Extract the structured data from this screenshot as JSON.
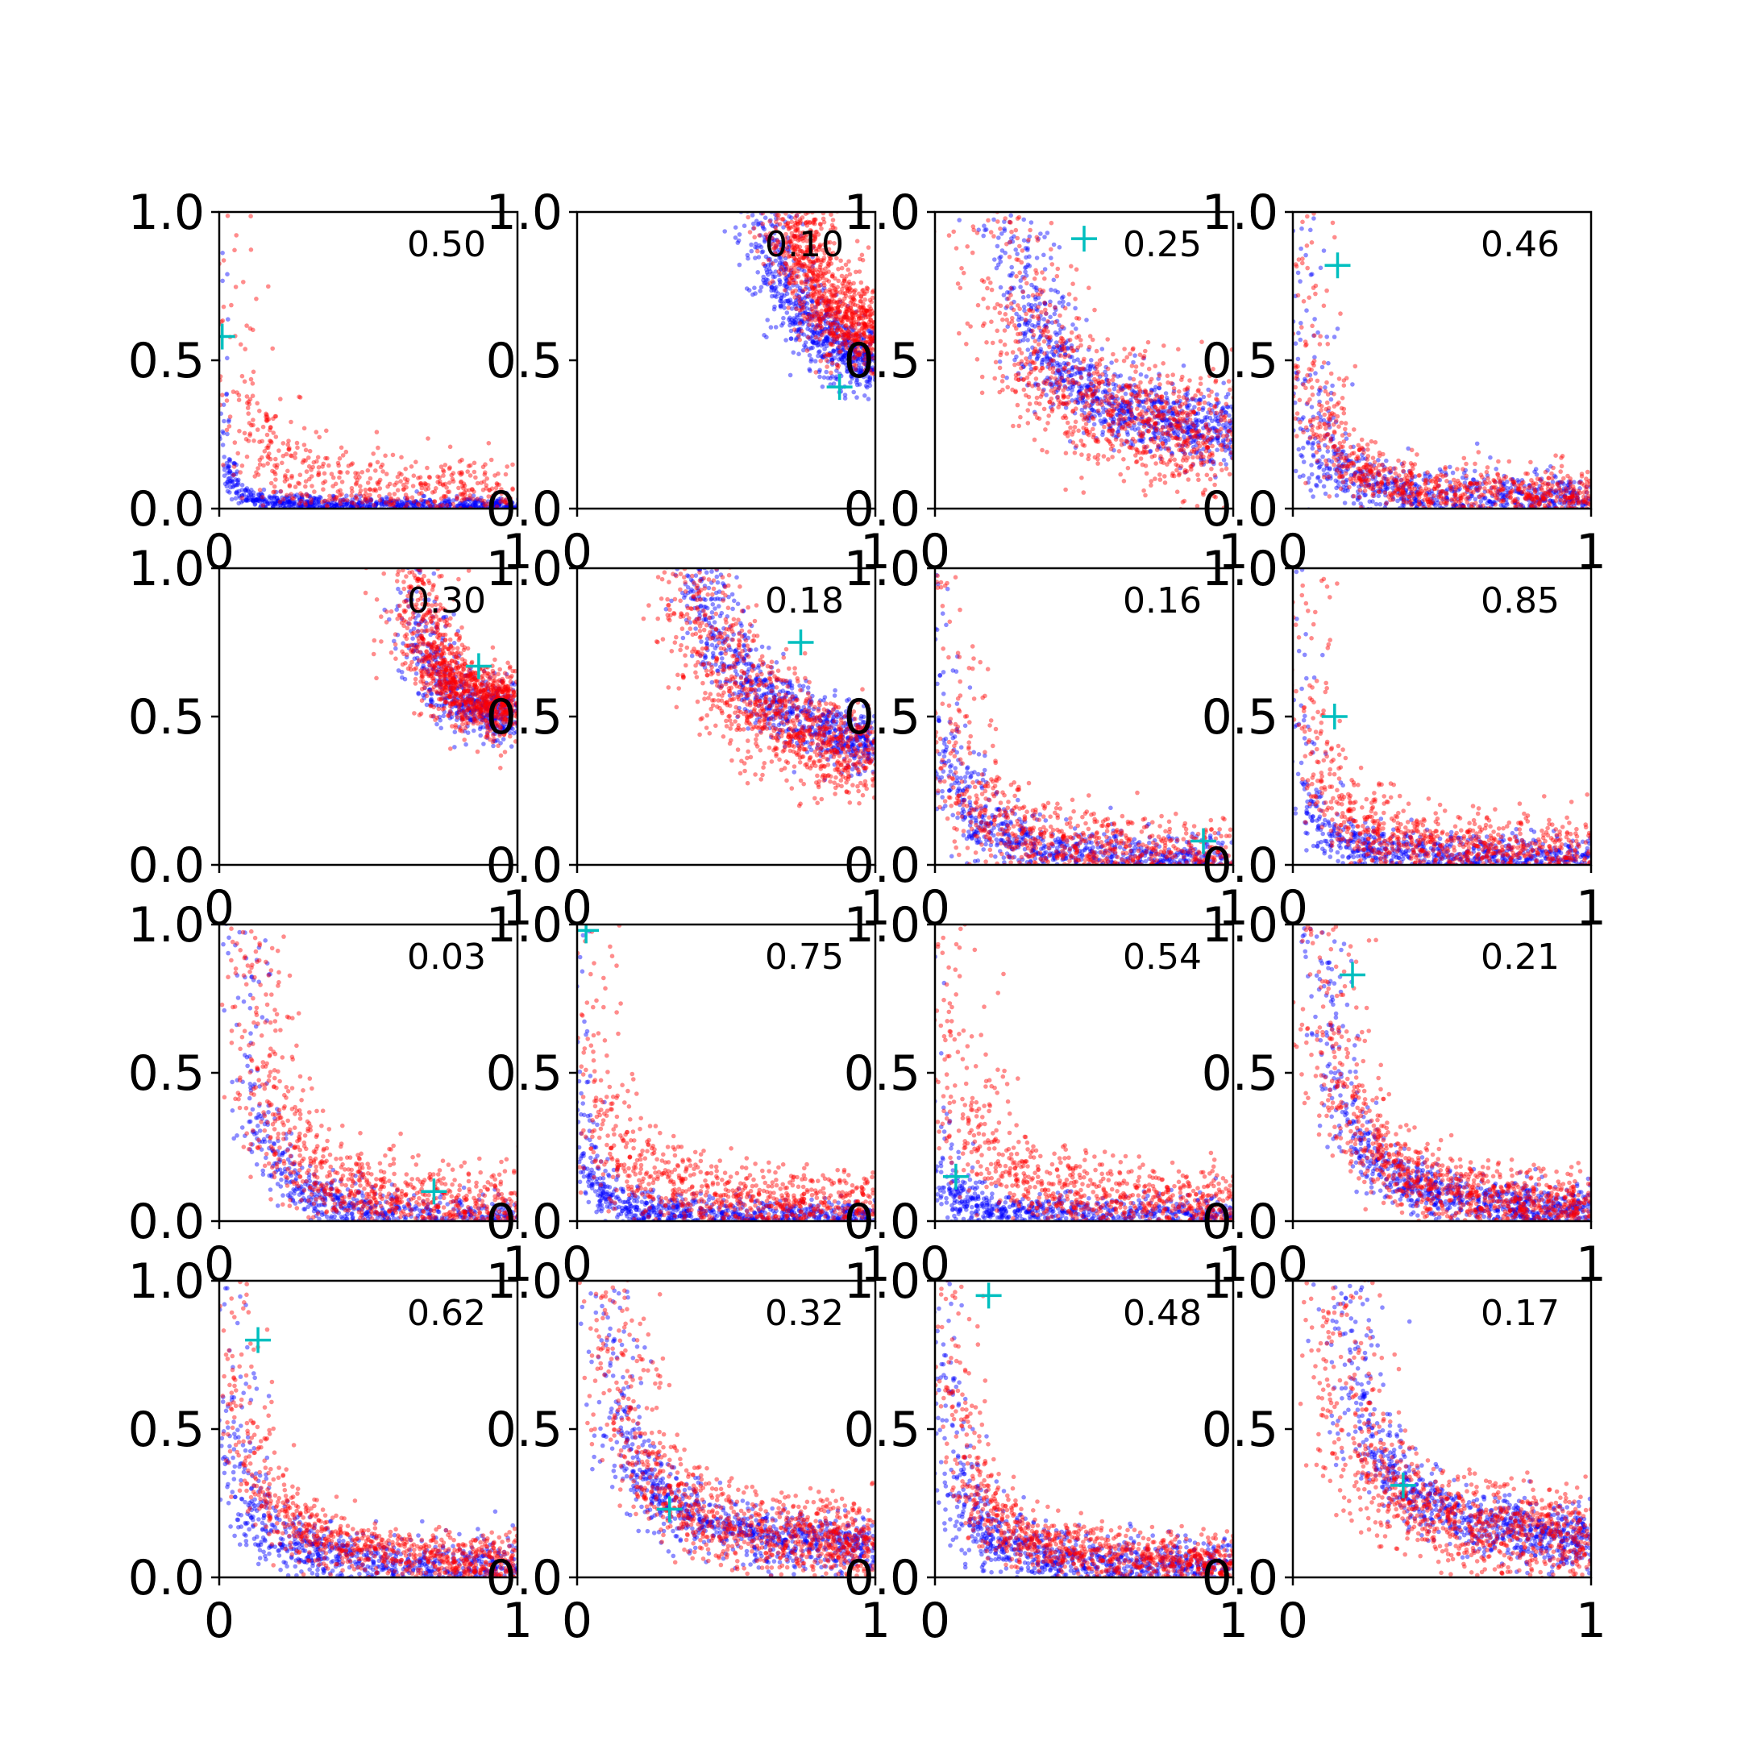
{
  "figure": {
    "rows": 4,
    "cols": 4
  },
  "colors": {
    "series_a": "#0000ff",
    "series_b": "#ff0000",
    "marker": "#00bfbf",
    "axes": "#000000"
  },
  "chart_data": [
    {
      "type": "scatter",
      "annotation": "0.50",
      "xlim": [
        0,
        1
      ],
      "ylim": [
        0,
        1
      ],
      "xticks": [
        "0",
        "1"
      ],
      "yticks": [
        "0.0",
        "0.5",
        "1.0"
      ],
      "marker": {
        "x": 0.01,
        "y": 0.58
      },
      "series": [
        {
          "color": "#0000ff",
          "n": 900,
          "shape": {
            "k": 0.004,
            "x0": 0,
            "y0": 0,
            "noise": 0.015
          }
        },
        {
          "color": "#ff0000",
          "n": 650,
          "shape": {
            "k": 0.03,
            "x0": 0,
            "y0": 0,
            "noise": 0.07
          }
        }
      ]
    },
    {
      "type": "scatter",
      "annotation": "0.10",
      "xlim": [
        0,
        1
      ],
      "ylim": [
        0,
        1
      ],
      "xticks": [
        "0",
        "1"
      ],
      "yticks": [
        "0.0",
        "0.5",
        "1.0"
      ],
      "marker": {
        "x": 0.88,
        "y": 0.41
      },
      "series": [
        {
          "color": "#0000ff",
          "n": 800,
          "shape": {
            "k": 0.09,
            "x0": 0.5,
            "y0": 0.3,
            "noise": 0.05
          }
        },
        {
          "color": "#ff0000",
          "n": 1000,
          "shape": {
            "k": 0.12,
            "x0": 0.55,
            "y0": 0.3,
            "noise": 0.06
          }
        }
      ]
    },
    {
      "type": "scatter",
      "annotation": "0.25",
      "xlim": [
        0,
        1
      ],
      "ylim": [
        0,
        1
      ],
      "xticks": [
        "0",
        "1"
      ],
      "yticks": [
        "0.0",
        "0.5",
        "1.0"
      ],
      "marker": {
        "x": 0.5,
        "y": 0.91
      },
      "series": [
        {
          "color": "#0000ff",
          "n": 1000,
          "shape": {
            "k": 0.09,
            "x0": 0.15,
            "y0": 0.15,
            "noise": 0.06
          }
        },
        {
          "color": "#ff0000",
          "n": 1000,
          "shape": {
            "k": 0.09,
            "x0": 0.13,
            "y0": 0.13,
            "noise": 0.1
          }
        }
      ]
    },
    {
      "type": "scatter",
      "annotation": "0.46",
      "xlim": [
        0,
        1
      ],
      "ylim": [
        0,
        1
      ],
      "xticks": [
        "0",
        "1"
      ],
      "yticks": [
        "0.0",
        "0.5",
        "1.0"
      ],
      "marker": {
        "x": 0.15,
        "y": 0.82
      },
      "series": [
        {
          "color": "#0000ff",
          "n": 900,
          "shape": {
            "k": 0.018,
            "x0": 0,
            "y0": 0,
            "noise": 0.05
          }
        },
        {
          "color": "#ff0000",
          "n": 900,
          "shape": {
            "k": 0.03,
            "x0": 0,
            "y0": 0,
            "noise": 0.05
          }
        }
      ]
    },
    {
      "type": "scatter",
      "annotation": "0.30",
      "xlim": [
        0,
        1
      ],
      "ylim": [
        0,
        1
      ],
      "xticks": [
        "0",
        "1"
      ],
      "yticks": [
        "0.0",
        "0.5",
        "1.0"
      ],
      "marker": {
        "x": 0.87,
        "y": 0.67
      },
      "series": [
        {
          "color": "#0000ff",
          "n": 600,
          "shape": {
            "k": 0.02,
            "x0": 0.62,
            "y0": 0.45,
            "noise": 0.05
          }
        },
        {
          "color": "#ff0000",
          "n": 1100,
          "shape": {
            "k": 0.03,
            "x0": 0.6,
            "y0": 0.45,
            "noise": 0.06
          }
        }
      ]
    },
    {
      "type": "scatter",
      "annotation": "0.18",
      "xlim": [
        0,
        1
      ],
      "ylim": [
        0,
        1
      ],
      "xticks": [
        "0",
        "1"
      ],
      "yticks": [
        "0.0",
        "0.5",
        "1.0"
      ],
      "marker": {
        "x": 0.75,
        "y": 0.75
      },
      "series": [
        {
          "color": "#0000ff",
          "n": 800,
          "shape": {
            "k": 0.16,
            "x0": 0.2,
            "y0": 0.2,
            "noise": 0.05
          }
        },
        {
          "color": "#ff0000",
          "n": 1000,
          "shape": {
            "k": 0.14,
            "x0": 0.2,
            "y0": 0.18,
            "noise": 0.08
          }
        }
      ]
    },
    {
      "type": "scatter",
      "annotation": "0.16",
      "xlim": [
        0,
        1
      ],
      "ylim": [
        0,
        1
      ],
      "xticks": [
        "0",
        "1"
      ],
      "yticks": [
        "0.0",
        "0.5",
        "1.0"
      ],
      "marker": {
        "x": 0.9,
        "y": 0.08
      },
      "series": [
        {
          "color": "#0000ff",
          "n": 1000,
          "shape": {
            "k": 0.04,
            "x0": -0.05,
            "y0": -0.05,
            "noise": 0.05
          }
        },
        {
          "color": "#ff0000",
          "n": 1000,
          "shape": {
            "k": 0.045,
            "x0": -0.05,
            "y0": -0.05,
            "noise": 0.08
          }
        }
      ]
    },
    {
      "type": "scatter",
      "annotation": "0.85",
      "xlim": [
        0,
        1
      ],
      "ylim": [
        0,
        1
      ],
      "xticks": [
        "0",
        "1"
      ],
      "yticks": [
        "0.0",
        "0.5",
        "1.0"
      ],
      "marker": {
        "x": 0.14,
        "y": 0.5
      },
      "series": [
        {
          "color": "#0000ff",
          "n": 900,
          "shape": {
            "k": 0.012,
            "x0": 0,
            "y0": 0,
            "noise": 0.04
          }
        },
        {
          "color": "#ff0000",
          "n": 900,
          "shape": {
            "k": 0.03,
            "x0": 0,
            "y0": 0,
            "noise": 0.06
          }
        }
      ]
    },
    {
      "type": "scatter",
      "annotation": "0.03",
      "xlim": [
        0,
        1
      ],
      "ylim": [
        0,
        1
      ],
      "xticks": [
        "0",
        "1"
      ],
      "yticks": [
        "0.0",
        "0.5",
        "1.0"
      ],
      "marker": {
        "x": 0.72,
        "y": 0.1
      },
      "series": [
        {
          "color": "#0000ff",
          "n": 800,
          "shape": {
            "k": 0.035,
            "x0": 0.05,
            "y0": -0.05,
            "noise": 0.04
          }
        },
        {
          "color": "#ff0000",
          "n": 1000,
          "shape": {
            "k": 0.06,
            "x0": 0.05,
            "y0": -0.05,
            "noise": 0.07
          }
        }
      ]
    },
    {
      "type": "scatter",
      "annotation": "0.75",
      "xlim": [
        0,
        1
      ],
      "ylim": [
        0,
        1
      ],
      "xticks": [
        "0",
        "1"
      ],
      "yticks": [
        "0.0",
        "0.5",
        "1.0"
      ],
      "marker": {
        "x": 0.03,
        "y": 0.98
      },
      "series": [
        {
          "color": "#0000ff",
          "n": 900,
          "shape": {
            "k": 0.008,
            "x0": 0,
            "y0": 0,
            "noise": 0.03
          }
        },
        {
          "color": "#ff0000",
          "n": 900,
          "shape": {
            "k": 0.035,
            "x0": 0,
            "y0": 0,
            "noise": 0.07
          }
        }
      ]
    },
    {
      "type": "scatter",
      "annotation": "0.54",
      "xlim": [
        0,
        1
      ],
      "ylim": [
        0,
        1
      ],
      "xticks": [
        "0",
        "1"
      ],
      "yticks": [
        "0.0",
        "0.5",
        "1.0"
      ],
      "marker": {
        "x": 0.07,
        "y": 0.15
      },
      "series": [
        {
          "color": "#0000ff",
          "n": 900,
          "shape": {
            "k": 0.006,
            "x0": 0,
            "y0": 0,
            "noise": 0.04
          }
        },
        {
          "color": "#ff0000",
          "n": 900,
          "shape": {
            "k": 0.04,
            "x0": 0,
            "y0": 0,
            "noise": 0.07
          }
        }
      ]
    },
    {
      "type": "scatter",
      "annotation": "0.21",
      "xlim": [
        0,
        1
      ],
      "ylim": [
        0,
        1
      ],
      "xticks": [
        "0",
        "1"
      ],
      "yticks": [
        "0.0",
        "0.5",
        "1.0"
      ],
      "marker": {
        "x": 0.2,
        "y": 0.83
      },
      "series": [
        {
          "color": "#0000ff",
          "n": 900,
          "shape": {
            "k": 0.05,
            "x0": 0.05,
            "y0": -0.02,
            "noise": 0.04
          }
        },
        {
          "color": "#ff0000",
          "n": 1000,
          "shape": {
            "k": 0.06,
            "x0": 0.05,
            "y0": -0.02,
            "noise": 0.06
          }
        }
      ]
    },
    {
      "type": "scatter",
      "annotation": "0.62",
      "xlim": [
        0,
        1
      ],
      "ylim": [
        0,
        1
      ],
      "xticks": [
        "0",
        "1"
      ],
      "yticks": [
        "0.0",
        "0.5",
        "1.0"
      ],
      "marker": {
        "x": 0.13,
        "y": 0.8
      },
      "series": [
        {
          "color": "#0000ff",
          "n": 900,
          "shape": {
            "k": 0.025,
            "x0": 0,
            "y0": 0,
            "noise": 0.05
          }
        },
        {
          "color": "#ff0000",
          "n": 900,
          "shape": {
            "k": 0.045,
            "x0": 0,
            "y0": 0,
            "noise": 0.05
          }
        }
      ]
    },
    {
      "type": "scatter",
      "annotation": "0.32",
      "xlim": [
        0,
        1
      ],
      "ylim": [
        0,
        1
      ],
      "xticks": [
        "0",
        "1"
      ],
      "yticks": [
        "0.0",
        "0.5",
        "1.0"
      ],
      "marker": {
        "x": 0.31,
        "y": 0.23
      },
      "series": [
        {
          "color": "#0000ff",
          "n": 900,
          "shape": {
            "k": 0.05,
            "x0": 0.05,
            "y0": 0.05,
            "noise": 0.05
          }
        },
        {
          "color": "#ff0000",
          "n": 1000,
          "shape": {
            "k": 0.06,
            "x0": 0.05,
            "y0": 0.05,
            "noise": 0.07
          }
        }
      ]
    },
    {
      "type": "scatter",
      "annotation": "0.48",
      "xlim": [
        0,
        1
      ],
      "ylim": [
        0,
        1
      ],
      "xticks": [
        "0",
        "1"
      ],
      "yticks": [
        "0.0",
        "0.5",
        "1.0"
      ],
      "marker": {
        "x": 0.18,
        "y": 0.95
      },
      "series": [
        {
          "color": "#0000ff",
          "n": 1000,
          "shape": {
            "k": 0.025,
            "x0": 0,
            "y0": 0,
            "noise": 0.05
          }
        },
        {
          "color": "#ff0000",
          "n": 1000,
          "shape": {
            "k": 0.04,
            "x0": 0,
            "y0": 0,
            "noise": 0.05
          }
        }
      ]
    },
    {
      "type": "scatter",
      "annotation": "0.17",
      "xlim": [
        0,
        1
      ],
      "ylim": [
        0,
        1
      ],
      "xticks": [
        "0",
        "1"
      ],
      "yticks": [
        "0.0",
        "0.5",
        "1.0"
      ],
      "marker": {
        "x": 0.37,
        "y": 0.31
      },
      "series": [
        {
          "color": "#0000ff",
          "n": 900,
          "shape": {
            "k": 0.07,
            "x0": 0.1,
            "y0": 0.05,
            "noise": 0.05
          }
        },
        {
          "color": "#ff0000",
          "n": 1000,
          "shape": {
            "k": 0.07,
            "x0": 0.05,
            "y0": 0.05,
            "noise": 0.08
          }
        }
      ]
    }
  ]
}
